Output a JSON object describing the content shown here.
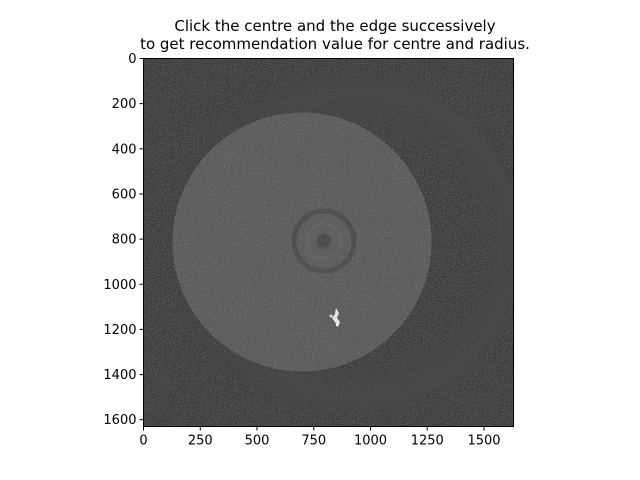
{
  "figure": {
    "title_line1": "Click the centre and the edge successively",
    "title_line2": "to get recommendation value for centre and radius."
  },
  "image_panel": {
    "content": "grayscale circular sample image",
    "colormap": "gray"
  },
  "axes": {
    "x_ticks": [
      0,
      250,
      500,
      750,
      1000,
      1250,
      1500
    ],
    "y_ticks": [
      0,
      200,
      400,
      600,
      800,
      1000,
      1200,
      1400,
      1600
    ],
    "x_tick_labels": [
      "0",
      "250",
      "500",
      "750",
      "1000",
      "1250",
      "1500"
    ],
    "y_tick_labels": [
      "0",
      "200",
      "400",
      "600",
      "800",
      "1000",
      "1200",
      "1400",
      "1600"
    ],
    "xlim": [
      0,
      1630
    ],
    "ylim": [
      1630,
      0
    ]
  },
  "colors": {
    "background": "#ffffff",
    "image_background": "#404040",
    "disc": "#5a5a5a"
  }
}
